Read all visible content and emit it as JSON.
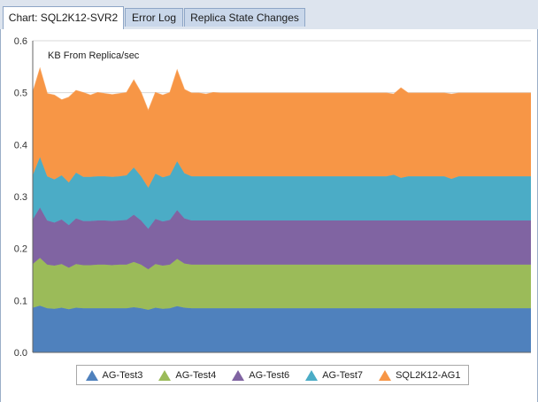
{
  "tabs": [
    {
      "label": "Chart: SQL2K12-SVR2",
      "active": true
    },
    {
      "label": "Error Log",
      "active": false
    },
    {
      "label": "Replica State Changes",
      "active": false
    }
  ],
  "chart_data": {
    "type": "area",
    "stacked": true,
    "title": "KB From Replica/sec",
    "xlabel": "",
    "ylabel": "",
    "ylim": [
      0,
      0.6
    ],
    "yticks": [
      "0.0",
      "0.1",
      "0.2",
      "0.3",
      "0.4",
      "0.5",
      "0.6"
    ],
    "grid": true,
    "legend_position": "bottom",
    "x": [
      0,
      1,
      2,
      3,
      4,
      5,
      6,
      7,
      8,
      9,
      10,
      11,
      12,
      13,
      14,
      15,
      16,
      17,
      18,
      19,
      20,
      21,
      22,
      23,
      24,
      25,
      26,
      27,
      28,
      29,
      30,
      31,
      32,
      33,
      34,
      35,
      36,
      37,
      38,
      39,
      40,
      41,
      42,
      43,
      44,
      45,
      46,
      47,
      48,
      49,
      50,
      51,
      52,
      53,
      54,
      55,
      56,
      57,
      58,
      59,
      60,
      61,
      62,
      63,
      64,
      65,
      66,
      67,
      68,
      69
    ],
    "series": [
      {
        "name": "AG-Test3",
        "color": "#4f81bd",
        "values": [
          0.086,
          0.09,
          0.085,
          0.084,
          0.086,
          0.083,
          0.086,
          0.085,
          0.085,
          0.085,
          0.085,
          0.085,
          0.085,
          0.085,
          0.087,
          0.085,
          0.082,
          0.086,
          0.084,
          0.085,
          0.089,
          0.086,
          0.085,
          0.085,
          0.085,
          0.085,
          0.085,
          0.085,
          0.085,
          0.085,
          0.085,
          0.085,
          0.085,
          0.085,
          0.085,
          0.085,
          0.085,
          0.085,
          0.085,
          0.085,
          0.085,
          0.085,
          0.085,
          0.085,
          0.085,
          0.085,
          0.085,
          0.085,
          0.085,
          0.085,
          0.085,
          0.085,
          0.085,
          0.085,
          0.085,
          0.085,
          0.085,
          0.085,
          0.085,
          0.085,
          0.085,
          0.085,
          0.085,
          0.085,
          0.085,
          0.085,
          0.085,
          0.085,
          0.085,
          0.085
        ]
      },
      {
        "name": "AG-Test4",
        "color": "#9bbb59",
        "values": [
          0.084,
          0.092,
          0.084,
          0.083,
          0.084,
          0.08,
          0.084,
          0.083,
          0.083,
          0.084,
          0.084,
          0.083,
          0.084,
          0.084,
          0.087,
          0.084,
          0.078,
          0.084,
          0.083,
          0.084,
          0.091,
          0.085,
          0.084,
          0.084,
          0.084,
          0.084,
          0.084,
          0.084,
          0.084,
          0.084,
          0.084,
          0.084,
          0.084,
          0.084,
          0.084,
          0.084,
          0.084,
          0.084,
          0.084,
          0.084,
          0.084,
          0.084,
          0.084,
          0.084,
          0.084,
          0.084,
          0.084,
          0.084,
          0.084,
          0.084,
          0.084,
          0.084,
          0.084,
          0.084,
          0.084,
          0.084,
          0.084,
          0.084,
          0.084,
          0.084,
          0.084,
          0.084,
          0.084,
          0.084,
          0.084,
          0.084,
          0.084,
          0.084,
          0.084,
          0.084
        ]
      },
      {
        "name": "AG-Test6",
        "color": "#8064a2",
        "values": [
          0.086,
          0.097,
          0.085,
          0.083,
          0.086,
          0.082,
          0.088,
          0.085,
          0.085,
          0.085,
          0.085,
          0.085,
          0.085,
          0.086,
          0.091,
          0.085,
          0.078,
          0.087,
          0.085,
          0.086,
          0.094,
          0.087,
          0.085,
          0.085,
          0.085,
          0.085,
          0.085,
          0.085,
          0.085,
          0.085,
          0.085,
          0.085,
          0.085,
          0.085,
          0.085,
          0.085,
          0.085,
          0.085,
          0.085,
          0.085,
          0.085,
          0.085,
          0.085,
          0.085,
          0.085,
          0.085,
          0.085,
          0.085,
          0.085,
          0.085,
          0.085,
          0.085,
          0.085,
          0.085,
          0.085,
          0.085,
          0.085,
          0.085,
          0.085,
          0.085,
          0.085,
          0.085,
          0.085,
          0.085,
          0.085,
          0.085,
          0.085,
          0.085,
          0.085,
          0.085
        ]
      },
      {
        "name": "AG-Test7",
        "color": "#4bacc6",
        "values": [
          0.085,
          0.097,
          0.085,
          0.083,
          0.085,
          0.082,
          0.088,
          0.085,
          0.085,
          0.085,
          0.085,
          0.085,
          0.085,
          0.086,
          0.091,
          0.085,
          0.079,
          0.087,
          0.085,
          0.086,
          0.094,
          0.087,
          0.085,
          0.085,
          0.085,
          0.085,
          0.085,
          0.085,
          0.085,
          0.085,
          0.085,
          0.085,
          0.085,
          0.085,
          0.085,
          0.085,
          0.085,
          0.085,
          0.085,
          0.085,
          0.085,
          0.085,
          0.085,
          0.085,
          0.085,
          0.085,
          0.085,
          0.085,
          0.085,
          0.085,
          0.088,
          0.082,
          0.085,
          0.085,
          0.085,
          0.085,
          0.085,
          0.085,
          0.08,
          0.085,
          0.085,
          0.085,
          0.085,
          0.085,
          0.085,
          0.085,
          0.085,
          0.085,
          0.085,
          0.085
        ]
      },
      {
        "name": "SQL2K12-AG1",
        "color": "#f79646",
        "values": [
          0.159,
          0.17,
          0.159,
          0.162,
          0.145,
          0.164,
          0.158,
          0.162,
          0.157,
          0.161,
          0.159,
          0.158,
          0.159,
          0.159,
          0.168,
          0.161,
          0.148,
          0.156,
          0.158,
          0.159,
          0.175,
          0.161,
          0.16,
          0.16,
          0.158,
          0.161,
          0.16,
          0.16,
          0.16,
          0.16,
          0.16,
          0.16,
          0.16,
          0.16,
          0.16,
          0.16,
          0.16,
          0.16,
          0.16,
          0.16,
          0.16,
          0.16,
          0.16,
          0.16,
          0.16,
          0.16,
          0.16,
          0.16,
          0.16,
          0.16,
          0.155,
          0.173,
          0.16,
          0.16,
          0.16,
          0.16,
          0.16,
          0.16,
          0.163,
          0.16,
          0.16,
          0.16,
          0.16,
          0.16,
          0.16,
          0.16,
          0.16,
          0.16,
          0.16,
          0.16
        ]
      }
    ]
  }
}
